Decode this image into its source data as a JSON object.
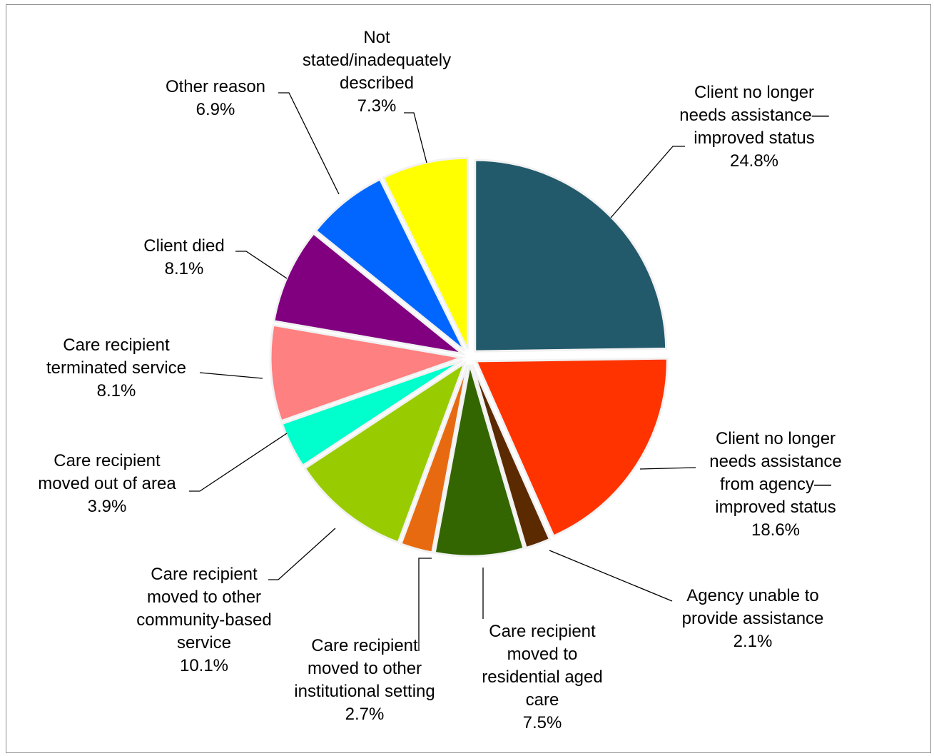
{
  "chart_data": {
    "type": "pie",
    "exploded": true,
    "start": "12 o'clock, clockwise",
    "slices": [
      {
        "name": "Client no longer needs assistance—improved status",
        "lines": [
          "Client no longer",
          "needs assistance—",
          "improved status"
        ],
        "value": 24.8,
        "label": "24.8%",
        "color": "#225a6b"
      },
      {
        "name": "Client no longer needs assistance from agency—improved status",
        "lines": [
          "Client no longer",
          "needs assistance",
          "from agency—",
          "improved status"
        ],
        "value": 18.6,
        "label": "18.6%",
        "color": "#ff3300"
      },
      {
        "name": "Agency unable to provide assistance",
        "lines": [
          "Agency unable to",
          "provide assistance"
        ],
        "value": 2.1,
        "label": "2.1%",
        "color": "#5c2a00"
      },
      {
        "name": "Care recipient moved to residential aged care",
        "lines": [
          "Care recipient",
          "moved to",
          "residential aged",
          "care"
        ],
        "value": 7.5,
        "label": "7.5%",
        "color": "#336600"
      },
      {
        "name": "Care recipient moved to other institutional setting",
        "lines": [
          "Care recipient",
          "moved to other",
          "institutional setting"
        ],
        "value": 2.7,
        "label": "2.7%",
        "color": "#e86a10"
      },
      {
        "name": "Care recipient moved to other community-based service",
        "lines": [
          "Care recipient",
          "moved to other",
          "community-based",
          "service"
        ],
        "value": 10.1,
        "label": "10.1%",
        "color": "#99cc00"
      },
      {
        "name": "Care recipient moved out of area",
        "lines": [
          "Care recipient",
          "moved out of area"
        ],
        "value": 3.9,
        "label": "3.9%",
        "color": "#00ffcc"
      },
      {
        "name": "Care recipient terminated service",
        "lines": [
          "Care recipient",
          "terminated service"
        ],
        "value": 8.1,
        "label": "8.1%",
        "color": "#ff8080"
      },
      {
        "name": "Client died",
        "lines": [
          "Client died"
        ],
        "value": 8.1,
        "label": "8.1%",
        "color": "#800080"
      },
      {
        "name": "Other reason",
        "lines": [
          "Other reason"
        ],
        "value": 6.9,
        "label": "6.9%",
        "color": "#0066ff"
      },
      {
        "name": "Not stated/inadequately described",
        "lines": [
          "Not",
          "stated/inadequately",
          "described"
        ],
        "value": 7.3,
        "label": "7.3%",
        "color": "#ffff00"
      }
    ]
  }
}
